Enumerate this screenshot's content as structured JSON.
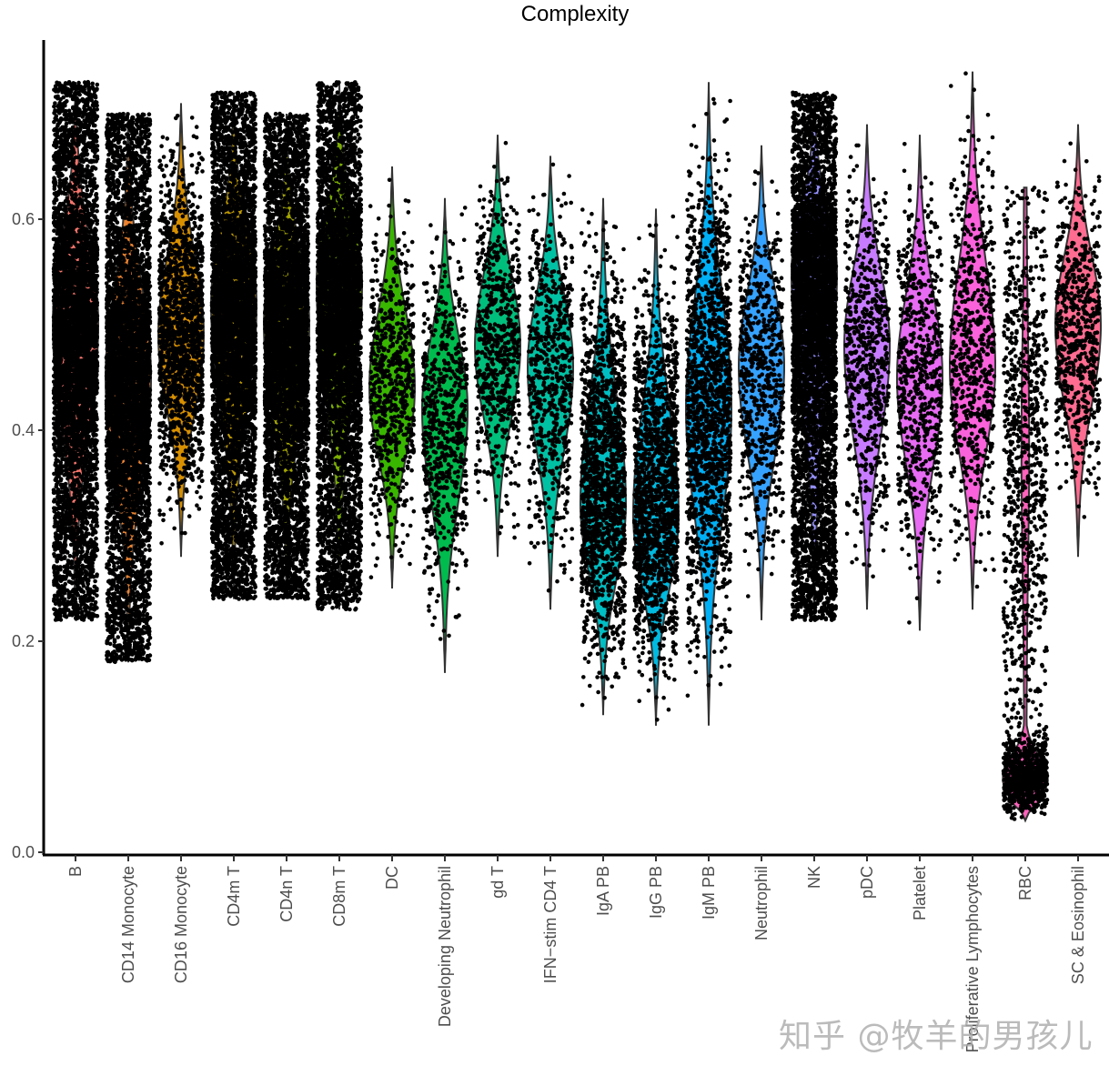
{
  "chart_data": {
    "type": "violin",
    "title": "Complexity",
    "xlabel": "",
    "ylabel": "",
    "ylim": [
      0.0,
      0.77
    ],
    "yticks": [
      0.0,
      0.2,
      0.4,
      0.6
    ],
    "ytick_labels": [
      "0.0",
      "0.2",
      "0.4",
      "0.6"
    ],
    "grid": false,
    "legend": "none",
    "point_color": "#000000",
    "categories": [
      "B",
      "CD14 Monocyte",
      "CD16 Monocyte",
      "CD4m T",
      "CD4n T",
      "CD8m T",
      "DC",
      "Developing Neutrophil",
      "gd T",
      "IFN−stim CD4 T",
      "IgA PB",
      "IgG PB",
      "IgM PB",
      "Neutrophil",
      "NK",
      "pDC",
      "Platelet",
      "Proliferative Lymphocytes",
      "RBC",
      "SC & Eosinophil"
    ],
    "series": [
      {
        "name": "B",
        "color": "#F8766D",
        "min": 0.22,
        "max": 0.73,
        "median": 0.5,
        "density": "very high"
      },
      {
        "name": "CD14 Monocyte",
        "color": "#EA8331",
        "min": 0.18,
        "max": 0.7,
        "median": 0.45,
        "density": "very high"
      },
      {
        "name": "CD16 Monocyte",
        "color": "#D89000",
        "min": 0.28,
        "max": 0.71,
        "median": 0.49,
        "density": "high"
      },
      {
        "name": "CD4m T",
        "color": "#C09B00",
        "min": 0.24,
        "max": 0.72,
        "median": 0.52,
        "density": "very high"
      },
      {
        "name": "CD4n T",
        "color": "#A3A500",
        "min": 0.24,
        "max": 0.7,
        "median": 0.5,
        "density": "very high"
      },
      {
        "name": "CD8m T",
        "color": "#7CAE00",
        "min": 0.23,
        "max": 0.73,
        "median": 0.54,
        "density": "very high"
      },
      {
        "name": "DC",
        "color": "#39B600",
        "min": 0.25,
        "max": 0.65,
        "median": 0.44,
        "density": "medium"
      },
      {
        "name": "Developing Neutrophil",
        "color": "#00BB4E",
        "min": 0.17,
        "max": 0.62,
        "median": 0.42,
        "density": "medium"
      },
      {
        "name": "gd T",
        "color": "#00BF7D",
        "min": 0.28,
        "max": 0.68,
        "median": 0.48,
        "density": "medium"
      },
      {
        "name": "IFN−stim CD4 T",
        "color": "#00C1A3",
        "min": 0.23,
        "max": 0.66,
        "median": 0.46,
        "density": "medium"
      },
      {
        "name": "IgA PB",
        "color": "#00BFC4",
        "min": 0.13,
        "max": 0.62,
        "median": 0.33,
        "density": "high"
      },
      {
        "name": "IgG PB",
        "color": "#00BAE0",
        "min": 0.12,
        "max": 0.61,
        "median": 0.32,
        "density": "high"
      },
      {
        "name": "IgM PB",
        "color": "#00B0F6",
        "min": 0.12,
        "max": 0.73,
        "median": 0.42,
        "density": "high"
      },
      {
        "name": "Neutrophil",
        "color": "#35A2FF",
        "min": 0.22,
        "max": 0.67,
        "median": 0.46,
        "density": "medium"
      },
      {
        "name": "NK",
        "color": "#9590FF",
        "min": 0.22,
        "max": 0.72,
        "median": 0.55,
        "density": "very high"
      },
      {
        "name": "pDC",
        "color": "#C77CFF",
        "min": 0.23,
        "max": 0.69,
        "median": 0.48,
        "density": "medium"
      },
      {
        "name": "Platelet",
        "color": "#E76BF3",
        "min": 0.21,
        "max": 0.68,
        "median": 0.45,
        "density": "medium"
      },
      {
        "name": "Proliferative Lymphocytes",
        "color": "#FA62DB",
        "min": 0.23,
        "max": 0.74,
        "median": 0.46,
        "density": "medium"
      },
      {
        "name": "RBC",
        "color": "#FF62BC",
        "min": 0.03,
        "max": 0.63,
        "median": 0.1,
        "density": "high"
      },
      {
        "name": "SC & Eosinophil",
        "color": "#FF6C91",
        "min": 0.28,
        "max": 0.69,
        "median": 0.5,
        "density": "medium"
      }
    ]
  },
  "watermark": "知乎 @牧羊的男孩儿"
}
